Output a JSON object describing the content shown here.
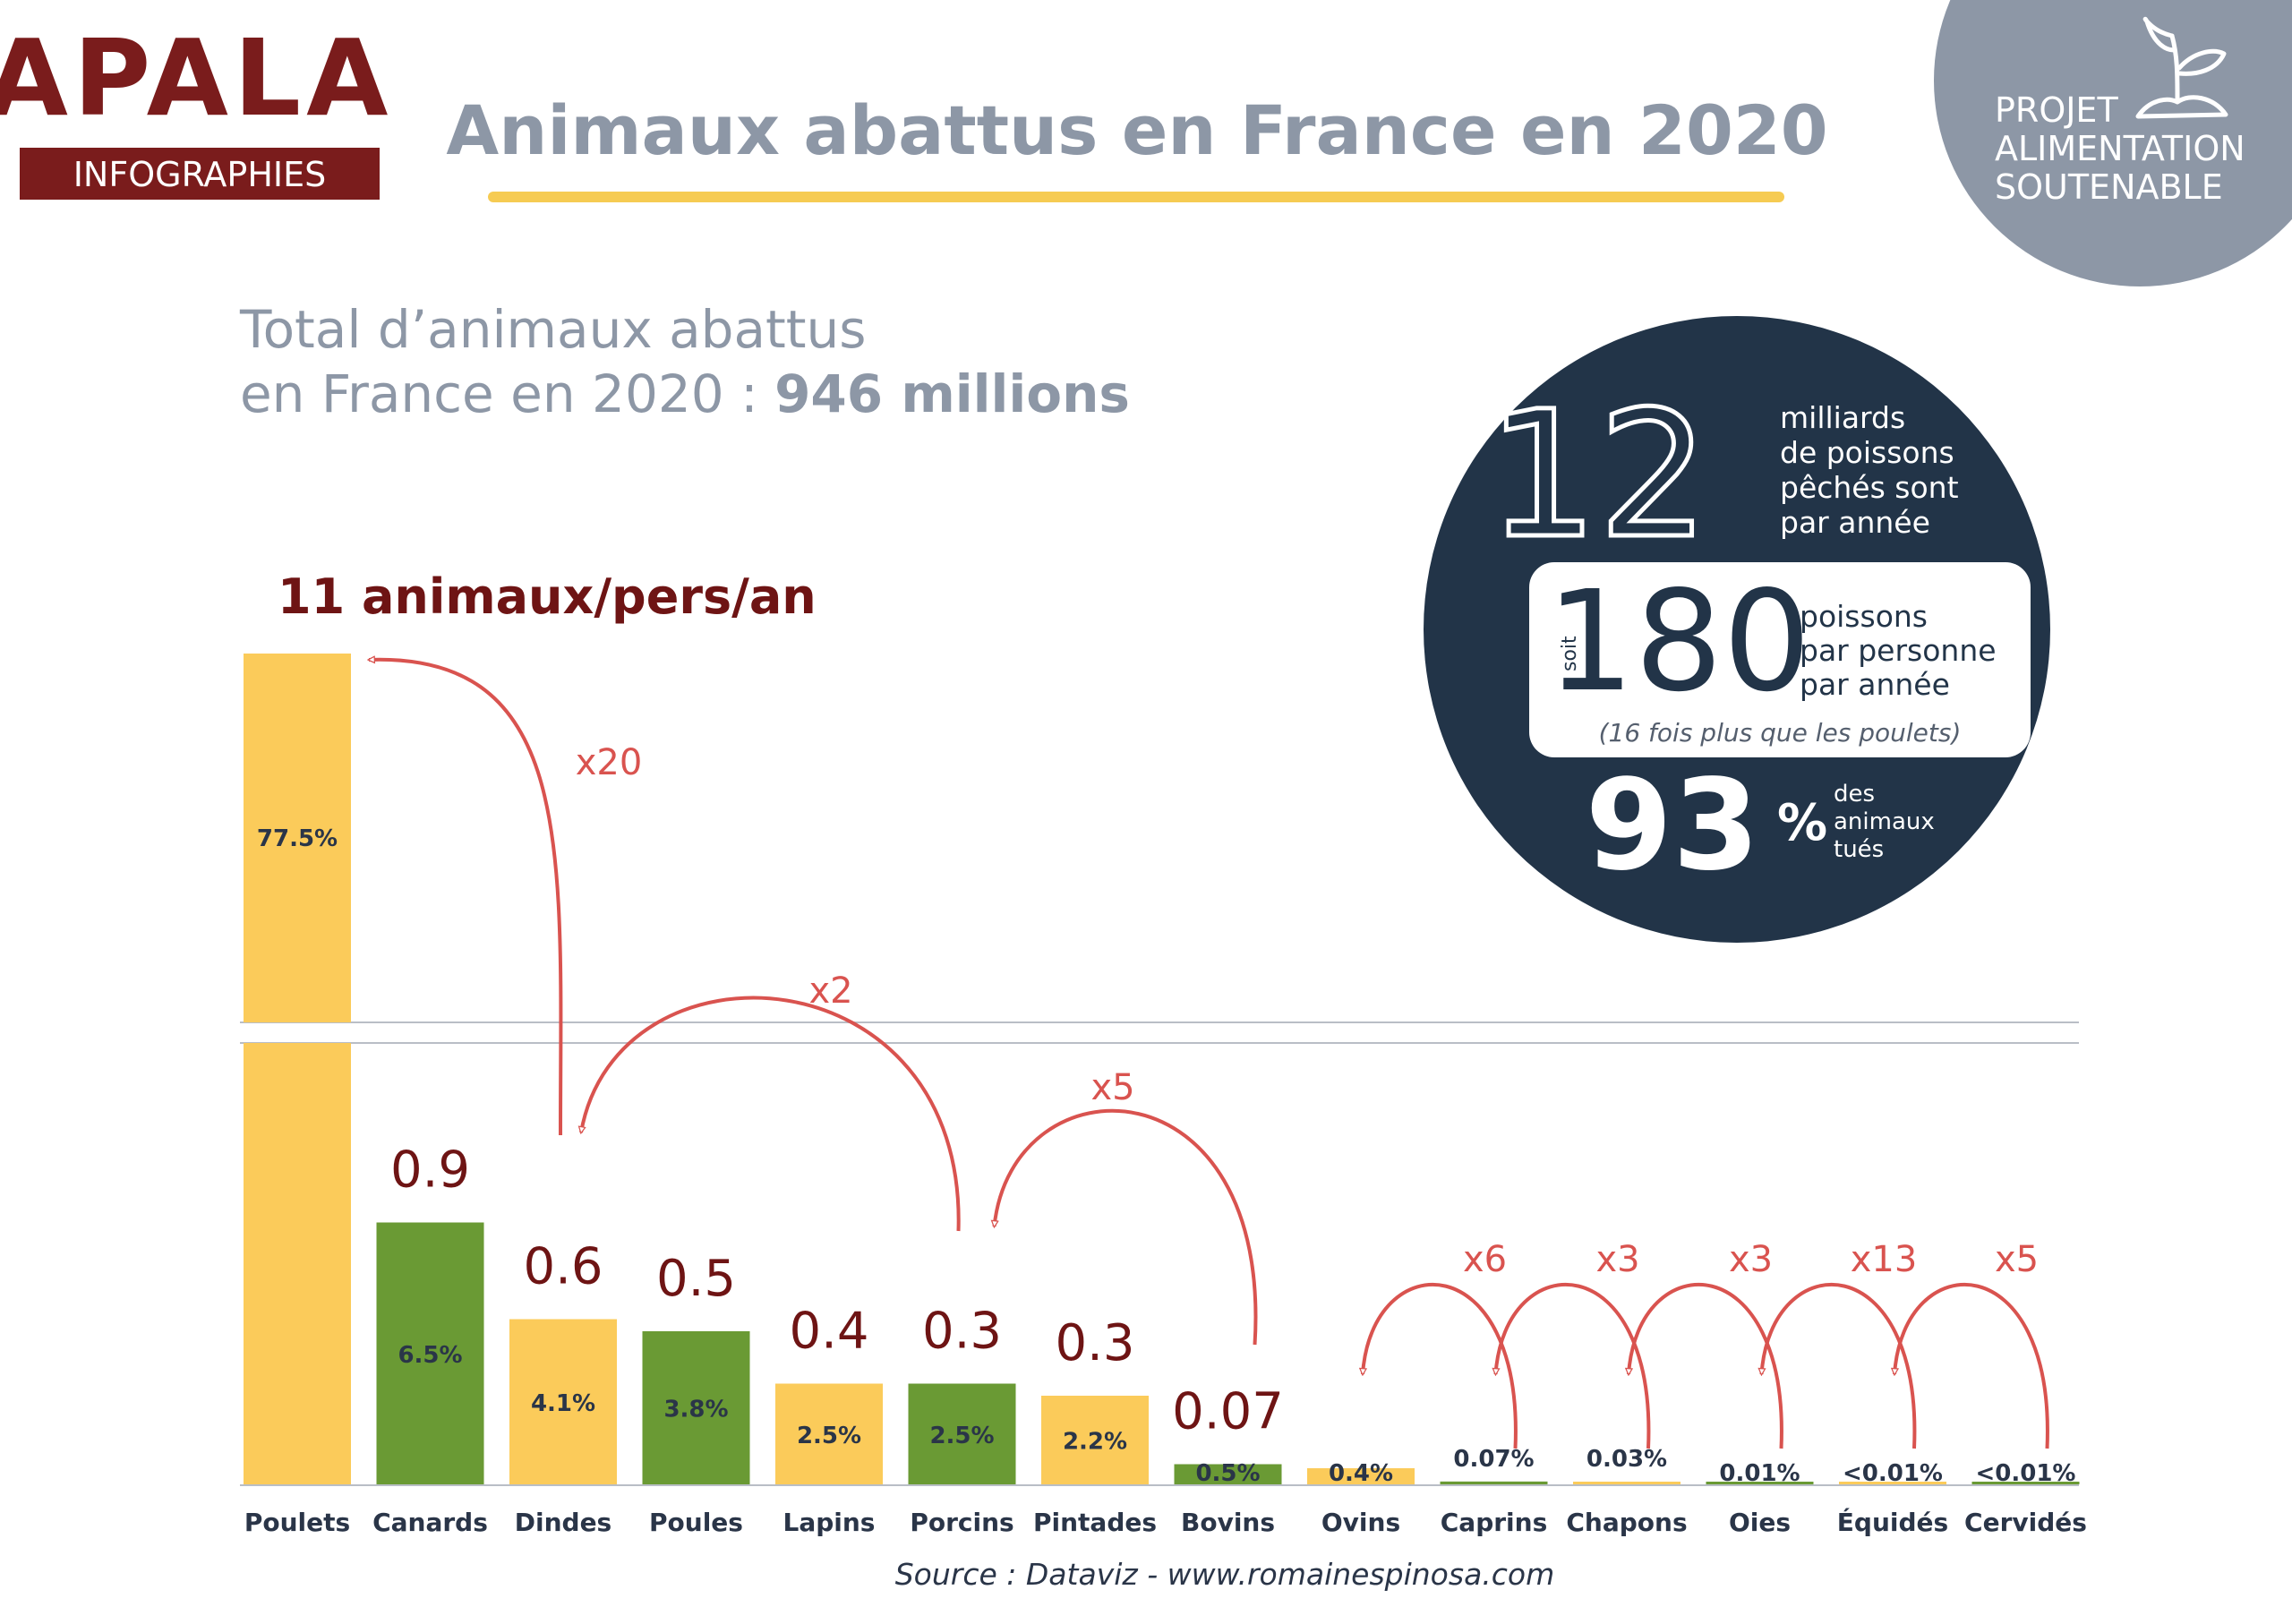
{
  "brand": {
    "logo_text": "APALA",
    "subtitle": "INFOGRAPHIES",
    "color": "#7a1c1c"
  },
  "page_title": "Animaux abattus en France en 2020",
  "badge": {
    "lines": [
      "PROJET",
      "ALIMENTATION",
      "SOUTENABLE"
    ],
    "icon": "sprout-icon",
    "color": "#8d97a6"
  },
  "total": {
    "line1": "Total d’animaux abattus",
    "line2_prefix": "en France en 2020 : ",
    "line2_value": "946 millions"
  },
  "fish": {
    "big_number": "12",
    "big_text": [
      "milliards",
      "de poissons",
      "pêchés sont",
      "par année"
    ],
    "soit_label": "soit",
    "per_person_number": "180",
    "per_person_text": [
      "poissons",
      "par personne",
      "par année"
    ],
    "comparison_note": "(16 fois plus que les poulets)",
    "percent_number": "93",
    "percent_sign": "%",
    "percent_text": [
      "des",
      "animaux",
      "tués"
    ],
    "circle_color": "#223448"
  },
  "colors": {
    "yellow": "#fbcb5a",
    "green": "#6a9a34",
    "arrow": "#d9534f",
    "per_capita_text": "#6e1414",
    "axis_text": "#2a3548",
    "gray_text": "#8d97a6"
  },
  "chart_data": {
    "type": "bar",
    "axis_break": true,
    "categories": [
      "Poulets",
      "Canards",
      "Dindes",
      "Poules",
      "Lapins",
      "Porcins",
      "Pintades",
      "Bovins",
      "Ovins",
      "Caprins",
      "Chapons",
      "Oies",
      "Équidés",
      "Cervidés"
    ],
    "share_labels": [
      "77.5%",
      "6.5%",
      "4.1%",
      "3.8%",
      "2.5%",
      "2.5%",
      "2.2%",
      "0.5%",
      "0.4%",
      "0.07%",
      "0.03%",
      "0.01%",
      "<0.01%",
      "<0.01%"
    ],
    "share_values": [
      77.5,
      6.5,
      4.1,
      3.8,
      2.5,
      2.5,
      2.2,
      0.5,
      0.4,
      0.07,
      0.03,
      0.01,
      0.005,
      0.005
    ],
    "bar_colors": [
      "yellow",
      "green",
      "yellow",
      "green",
      "yellow",
      "green",
      "yellow",
      "green",
      "yellow",
      "green",
      "yellow",
      "green",
      "yellow",
      "green"
    ],
    "per_capita_labels": [
      "11 animaux/pers/an",
      "0.9",
      "0.6",
      "0.5",
      "0.4",
      "0.3",
      "0.3",
      "0.07",
      "",
      "",
      "",
      "",
      "",
      ""
    ],
    "ratio_arrows": [
      {
        "from": "Dindes",
        "to": "Poulets",
        "label": "x20"
      },
      {
        "from": "Porcins",
        "to": "Dindes",
        "label": "x2"
      },
      {
        "from": "Bovins",
        "to": "Porcins",
        "label": "x5"
      },
      {
        "from": "Caprins",
        "to": "Ovins",
        "label": "x6"
      },
      {
        "from": "Chapons",
        "to": "Caprins",
        "label": "x3"
      },
      {
        "from": "Oies",
        "to": "Chapons",
        "label": "x3"
      },
      {
        "from": "Équidés",
        "to": "Oies",
        "label": "x13"
      },
      {
        "from": "Cervidés",
        "to": "Équidés",
        "label": "x5"
      }
    ]
  },
  "source": "Source : Dataviz - www.romainespinosa.com"
}
